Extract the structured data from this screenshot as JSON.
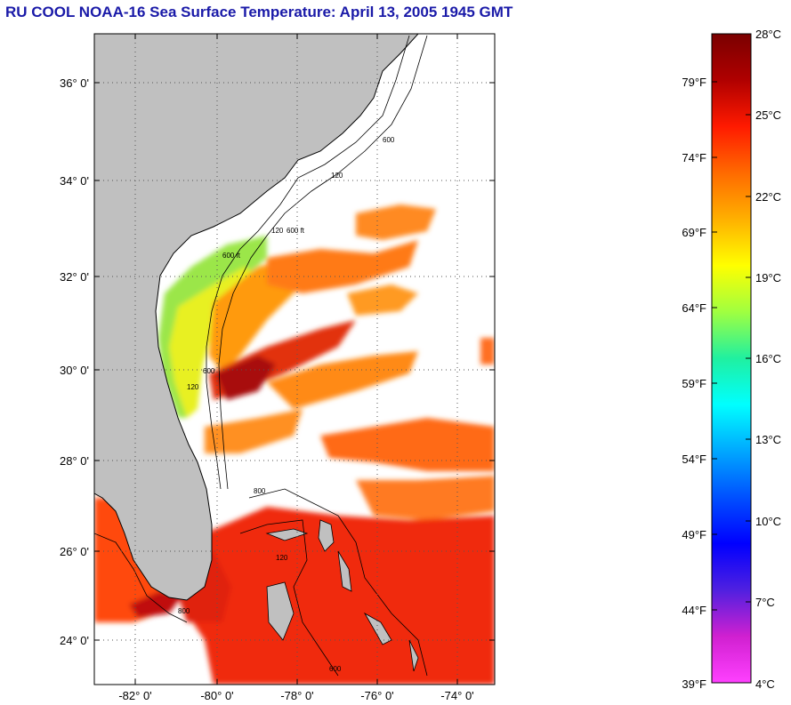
{
  "title": "RU COOL  NOAA-16  Sea Surface Temperature:  April 13, 2005 1945 GMT",
  "map": {
    "lat_labels": [
      "36° 0'",
      "34° 0'",
      "32° 0'",
      "30° 0'",
      "28° 0'",
      "26° 0'",
      "24° 0'"
    ],
    "lon_labels": [
      "-82° 0'",
      "-80° 0'",
      "-78° 0'",
      "-76° 0'",
      "-74° 0'"
    ],
    "contour_labels": [
      "120",
      "600 ft",
      "120",
      "600",
      "600 ft",
      "600",
      "120",
      "800",
      "800",
      "120",
      "600"
    ]
  },
  "colorbar": {
    "celsius_labels": [
      "28°C",
      "25°C",
      "22°C",
      "19°C",
      "16°C",
      "13°C",
      "10°C",
      "7°C",
      "4°C"
    ],
    "fahrenheit_labels": [
      "79°F",
      "74°F",
      "69°F",
      "64°F",
      "59°F",
      "54°F",
      "49°F",
      "44°F",
      "39°F"
    ],
    "stops": [
      "#7a0000",
      "#b00000",
      "#ff1a00",
      "#ff6a00",
      "#ffb000",
      "#ffff00",
      "#a0ff40",
      "#20f0a0",
      "#00ffff",
      "#00a8ff",
      "#0050ff",
      "#0000ff",
      "#5020e0",
      "#d020d0",
      "#ff40ff"
    ]
  },
  "colors": {
    "land": "#c0c0c0",
    "title": "#1a1aa8",
    "grid": "#555555"
  }
}
